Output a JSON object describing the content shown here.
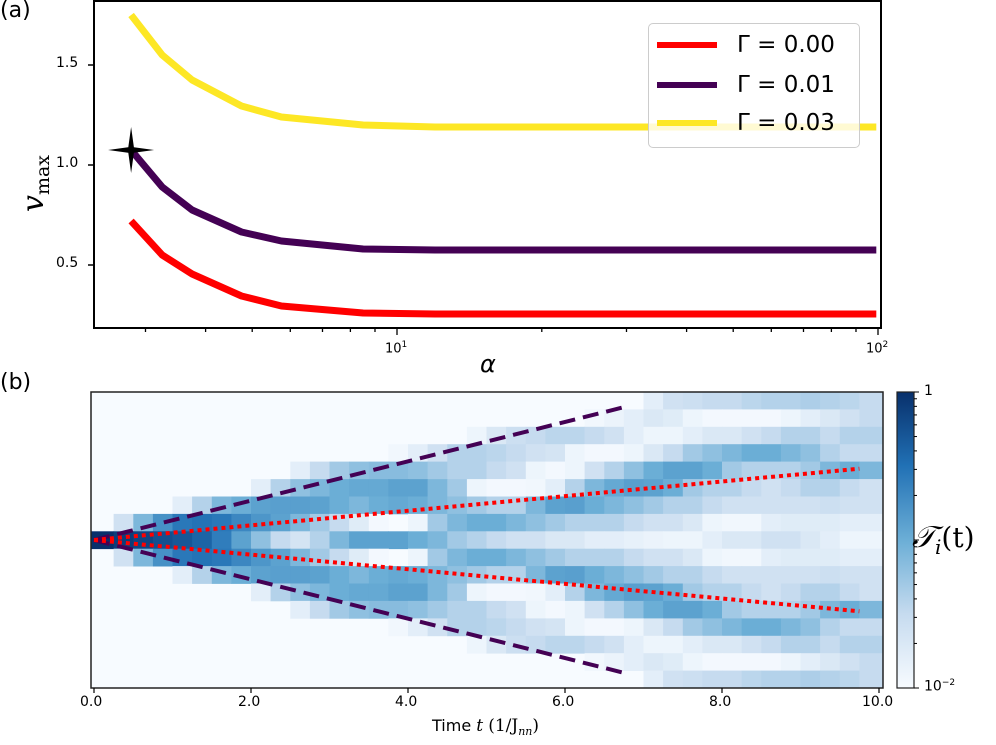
{
  "panels": {
    "a": {
      "label": "(a)"
    },
    "b": {
      "label": "(b)"
    }
  },
  "legend": [
    {
      "label": "Γ =  0.00",
      "color": "#ff0000"
    },
    {
      "label": "Γ =  0.01",
      "color": "#440154"
    },
    {
      "label": "Γ =  0.03",
      "color": "#fde725"
    }
  ],
  "axes_a": {
    "xlabel": "α",
    "ylabel_main": "v",
    "ylabel_sub": "max",
    "yticks": [
      "0.5",
      "1.0",
      "1.5"
    ],
    "xticks_major": [
      {
        "base": "10",
        "exp": "1"
      },
      {
        "base": "10",
        "exp": "2"
      }
    ]
  },
  "axes_b": {
    "xlabel_prefix": "Time ",
    "xlabel_var": "t",
    "xlabel_unit": "(1/J",
    "xlabel_unit_sub": "nn",
    "xlabel_unit_close": ")",
    "xticks": [
      "0.0",
      "2.0",
      "4.0",
      "6.0",
      "8.0",
      "10.0"
    ],
    "colorbar_label_main": "𝒯",
    "colorbar_label_sub": "i",
    "colorbar_label_tail": "(t)",
    "colorbar_top": "1",
    "colorbar_bottom_base": "10",
    "colorbar_bottom_exp": "−2"
  },
  "chart_data": [
    {
      "type": "line",
      "title": "(a)",
      "xlabel": "α",
      "ylabel": "v_max",
      "xscale": "log",
      "xlim": [
        2.35,
        100
      ],
      "ylim": [
        0.19,
        1.82
      ],
      "yticks": [
        0.5,
        1.0,
        1.5
      ],
      "xticks": [
        10,
        100
      ],
      "legend_position": "upper right",
      "x": [
        2.8,
        3.25,
        3.75,
        4.75,
        5.75,
        8.5,
        12,
        20,
        40,
        100
      ],
      "series": [
        {
          "name": "Γ = 0.00",
          "color": "#ff0000",
          "values": [
            0.72,
            0.55,
            0.455,
            0.345,
            0.295,
            0.26,
            0.255,
            0.255,
            0.255,
            0.255
          ]
        },
        {
          "name": "Γ = 0.01",
          "color": "#440154",
          "values": [
            1.075,
            0.89,
            0.775,
            0.665,
            0.62,
            0.58,
            0.575,
            0.575,
            0.575,
            0.575
          ]
        },
        {
          "name": "Γ = 0.03",
          "color": "#fde725",
          "values": [
            1.75,
            1.55,
            1.425,
            1.295,
            1.24,
            1.2,
            1.19,
            1.19,
            1.19,
            1.19
          ]
        }
      ],
      "annotations": [
        {
          "type": "star-marker",
          "x": 2.8,
          "y": 1.075,
          "color": "#000000"
        }
      ]
    },
    {
      "type": "heatmap",
      "title": "(b)",
      "xlabel": "Time t (1/J_nn)",
      "ylabel": "",
      "xlim": [
        0,
        10
      ],
      "xticks": [
        0,
        2,
        4,
        6,
        8,
        10
      ],
      "colorbar": {
        "label": "T_i(t)",
        "scale": "log",
        "range": [
          0.01,
          1
        ],
        "colormap": "Blues"
      },
      "rows": 17,
      "symmetric_about_center_row": true,
      "dt": 0.25,
      "half_rows_level": [
        [
          1.0,
          0.95,
          0.92,
          0.88,
          0.85,
          0.8,
          0.7,
          0.55,
          0.4,
          0.25,
          0.18,
          0.3,
          0.45,
          0.55,
          0.55,
          0.55,
          0.5,
          0.45,
          0.35,
          0.3,
          0.25,
          0.2,
          0.2,
          0.15,
          0.15,
          0.1,
          0.1,
          0.08,
          0.06,
          0.05,
          0.05,
          0.1,
          0.15,
          0.15,
          0.2,
          0.2,
          0.15,
          0.1,
          0.05,
          0.05
        ],
        [
          0.0,
          0.2,
          0.45,
          0.62,
          0.72,
          0.74,
          0.72,
          0.66,
          0.6,
          0.55,
          0.45,
          0.35,
          0.25,
          0.12,
          0.02,
          0.0,
          0.05,
          0.35,
          0.45,
          0.5,
          0.5,
          0.45,
          0.4,
          0.35,
          0.3,
          0.3,
          0.3,
          0.25,
          0.2,
          0.2,
          0.15,
          0.05,
          0.03,
          0.03,
          0.1,
          0.12,
          0.12,
          0.12,
          0.1,
          0.1
        ],
        [
          0.0,
          0.0,
          0.0,
          0.0,
          0.1,
          0.3,
          0.45,
          0.5,
          0.55,
          0.56,
          0.56,
          0.55,
          0.5,
          0.45,
          0.5,
          0.52,
          0.5,
          0.45,
          0.4,
          0.35,
          0.3,
          0.3,
          0.45,
          0.55,
          0.56,
          0.5,
          0.45,
          0.4,
          0.35,
          0.3,
          0.3,
          0.25,
          0.2,
          0.2,
          0.2,
          0.2,
          0.2,
          0.22,
          0.2,
          0.2
        ],
        [
          0.0,
          0.0,
          0.0,
          0.0,
          0.0,
          0.0,
          0.0,
          0.0,
          0.1,
          0.3,
          0.4,
          0.45,
          0.5,
          0.52,
          0.52,
          0.55,
          0.55,
          0.45,
          0.35,
          0.05,
          0.02,
          0.02,
          0.03,
          0.1,
          0.3,
          0.45,
          0.52,
          0.56,
          0.55,
          0.5,
          0.35,
          0.3,
          0.3,
          0.25,
          0.2,
          0.25,
          0.3,
          0.3,
          0.25,
          0.2
        ],
        [
          0.0,
          0.0,
          0.0,
          0.0,
          0.0,
          0.0,
          0.0,
          0.0,
          0.0,
          0.0,
          0.1,
          0.25,
          0.35,
          0.4,
          0.42,
          0.42,
          0.4,
          0.35,
          0.3,
          0.3,
          0.25,
          0.2,
          0.05,
          0.02,
          0.05,
          0.2,
          0.3,
          0.4,
          0.5,
          0.55,
          0.55,
          0.5,
          0.35,
          0.3,
          0.3,
          0.3,
          0.35,
          0.45,
          0.5,
          0.45
        ],
        [
          0.0,
          0.0,
          0.0,
          0.0,
          0.0,
          0.0,
          0.0,
          0.0,
          0.0,
          0.0,
          0.0,
          0.0,
          0.0,
          0.0,
          0.0,
          0.03,
          0.1,
          0.2,
          0.3,
          0.3,
          0.28,
          0.25,
          0.2,
          0.18,
          0.05,
          0.02,
          0.02,
          0.05,
          0.15,
          0.25,
          0.35,
          0.4,
          0.45,
          0.5,
          0.5,
          0.45,
          0.4,
          0.3,
          0.25,
          0.25
        ],
        [
          0.0,
          0.0,
          0.0,
          0.0,
          0.0,
          0.0,
          0.0,
          0.0,
          0.0,
          0.0,
          0.0,
          0.0,
          0.0,
          0.0,
          0.0,
          0.0,
          0.0,
          0.0,
          0.0,
          0.05,
          0.15,
          0.22,
          0.25,
          0.28,
          0.28,
          0.25,
          0.2,
          0.1,
          0.05,
          0.05,
          0.1,
          0.15,
          0.15,
          0.2,
          0.25,
          0.3,
          0.3,
          0.25,
          0.3,
          0.3
        ],
        [
          0.0,
          0.0,
          0.0,
          0.0,
          0.0,
          0.0,
          0.0,
          0.0,
          0.0,
          0.0,
          0.0,
          0.0,
          0.0,
          0.0,
          0.0,
          0.0,
          0.0,
          0.0,
          0.0,
          0.0,
          0.0,
          0.0,
          0.0,
          0.0,
          0.0,
          0.03,
          0.06,
          0.1,
          0.15,
          0.12,
          0.05,
          0.02,
          0.02,
          0.02,
          0.02,
          0.05,
          0.1,
          0.15,
          0.2,
          0.25
        ],
        [
          0.0,
          0.0,
          0.0,
          0.0,
          0.0,
          0.0,
          0.0,
          0.0,
          0.0,
          0.0,
          0.0,
          0.0,
          0.0,
          0.0,
          0.0,
          0.0,
          0.0,
          0.0,
          0.0,
          0.0,
          0.0,
          0.0,
          0.0,
          0.0,
          0.0,
          0.0,
          0.0,
          0.0,
          0.1,
          0.2,
          0.22,
          0.25,
          0.25,
          0.28,
          0.3,
          0.3,
          0.32,
          0.3,
          0.28,
          0.25
        ]
      ],
      "overlay_lines": [
        {
          "name": "Γ = 0.01 light cone",
          "style": "dashed",
          "color": "#440154",
          "t_end": 6.75,
          "velocity_rows_per_t": 1.13
        },
        {
          "name": "Γ = 0.00 light cone",
          "style": "dotted",
          "color": "#ff0000",
          "t_end": 9.75,
          "velocity_rows_per_t": 0.42
        }
      ]
    }
  ]
}
